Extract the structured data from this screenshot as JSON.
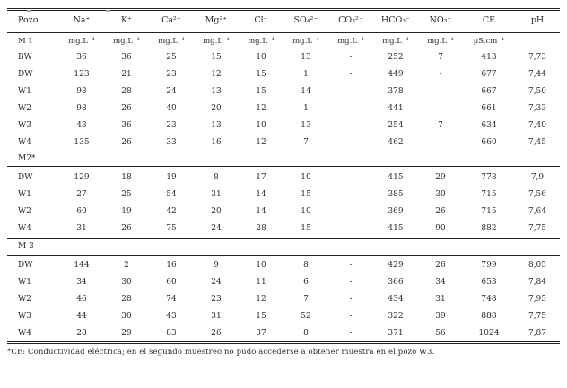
{
  "colors": {
    "background": "#ffffff",
    "ink": "#2b2b2b",
    "rule": "#222222"
  },
  "table": {
    "headers": [
      "Pozo",
      "Na⁺",
      "K⁺",
      "Ca²⁺",
      "Mg²⁺",
      "Cl⁻",
      "SO₄²⁻",
      "CO₃²⁻",
      "HCO₃⁻",
      "NO₃⁻",
      "CE",
      "pH"
    ],
    "units_row": [
      "M 1",
      "mg.L⁻¹",
      "mg.L⁻¹",
      "mg.L⁻¹",
      "mg.L⁻¹",
      "mg.L⁻¹",
      "mg.L⁻¹",
      "mg.L⁻¹",
      "mg.L⁻¹",
      "mg.L⁻¹",
      "µS.cm⁻¹",
      ""
    ],
    "sections": [
      {
        "label": null,
        "rows": [
          {
            "pozo": "BW",
            "values": [
              "36",
              "36",
              "25",
              "15",
              "10",
              "13",
              "-",
              "252",
              "7",
              "413",
              "7,73"
            ]
          },
          {
            "pozo": "DW",
            "values": [
              "123",
              "21",
              "23",
              "12",
              "15",
              "1",
              "-",
              "449",
              "-",
              "677",
              "7,44"
            ]
          },
          {
            "pozo": "W1",
            "values": [
              "93",
              "28",
              "24",
              "13",
              "15",
              "14",
              "-",
              "378",
              "-",
              "667",
              "7,50"
            ]
          },
          {
            "pozo": "W2",
            "values": [
              "98",
              "26",
              "40",
              "20",
              "12",
              "1",
              "-",
              "441",
              "-",
              "661",
              "7,33"
            ]
          },
          {
            "pozo": "W3",
            "values": [
              "43",
              "36",
              "23",
              "13",
              "10",
              "13",
              "-",
              "254",
              "7",
              "634",
              "7,40"
            ]
          },
          {
            "pozo": "W4",
            "values": [
              "135",
              "26",
              "33",
              "16",
              "12",
              "7",
              "-",
              "462",
              "-",
              "660",
              "7,45"
            ]
          }
        ]
      },
      {
        "label": "M2*",
        "rows": [
          {
            "pozo": "DW",
            "values": [
              "129",
              "18",
              "19",
              "8",
              "17",
              "10",
              "-",
              "415",
              "29",
              "778",
              "7,9"
            ]
          },
          {
            "pozo": "W1",
            "values": [
              "27",
              "25",
              "54",
              "31",
              "14",
              "15",
              "-",
              "385",
              "30",
              "715",
              "7,56"
            ]
          },
          {
            "pozo": "W2",
            "values": [
              "60",
              "19",
              "42",
              "20",
              "14",
              "10",
              "-",
              "369",
              "26",
              "715",
              "7,64"
            ]
          },
          {
            "pozo": "W4",
            "values": [
              "31",
              "26",
              "75",
              "24",
              "28",
              "15",
              "-",
              "415",
              "90",
              "882",
              "7,75"
            ]
          }
        ]
      },
      {
        "label": "M 3",
        "rows": [
          {
            "pozo": "DW",
            "values": [
              "144",
              "2",
              "16",
              "9",
              "10",
              "8",
              "-",
              "429",
              "26",
              "799",
              "8,05"
            ]
          },
          {
            "pozo": "W1",
            "values": [
              "34",
              "30",
              "60",
              "24",
              "11",
              "6",
              "-",
              "366",
              "34",
              "653",
              "7,84"
            ]
          },
          {
            "pozo": "W2",
            "values": [
              "46",
              "28",
              "74",
              "23",
              "12",
              "7",
              "-",
              "434",
              "31",
              "748",
              "7,95"
            ]
          },
          {
            "pozo": "W3",
            "values": [
              "44",
              "30",
              "43",
              "31",
              "15",
              "52",
              "-",
              "322",
              "39",
              "888",
              "7,75"
            ]
          },
          {
            "pozo": "W4",
            "values": [
              "28",
              "29",
              "83",
              "26",
              "37",
              "8",
              "-",
              "371",
              "56",
              "1024",
              "7,87"
            ]
          }
        ]
      }
    ],
    "footnote": "*CE: Conductividad eléctrica; en el segundo muestreo no pudo accederse a obtener muestra en el pozo W3."
  }
}
